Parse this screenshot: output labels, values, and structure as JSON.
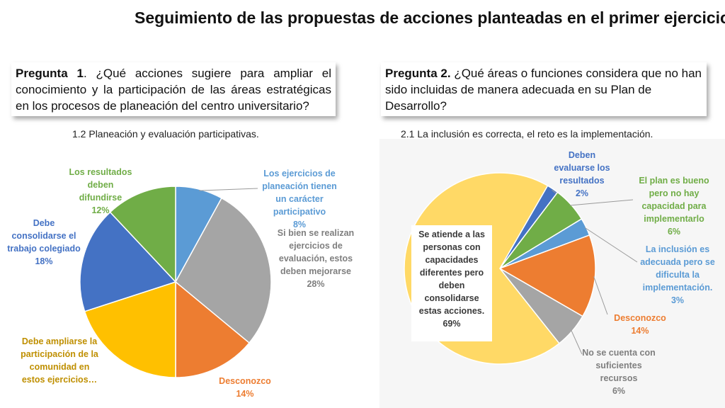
{
  "title": "Seguimiento de las propuestas de acciones planteadas en el primer ejercicio",
  "q1": {
    "bold": "Pregunta 1",
    "text": ". ¿Qué acciones sugiere para ampliar el conocimiento y la participación de las áreas estratégicas en los procesos de planeación del centro universitario?"
  },
  "q2": {
    "bold": "Pregunta 2.",
    "text": " ¿Qué áreas o funciones considera que no han sido incluidas de manera adecuada en su Plan de Desarrollo?"
  },
  "chart_data": [
    {
      "type": "pie",
      "title": "1.2 Planeación y evaluación participativas.",
      "slices": [
        {
          "label": "Los ejercicios de planeación tienen un carácter participativo",
          "pct": "8%",
          "value": 8,
          "color": "#5b9bd5"
        },
        {
          "label": "Si bien se realizan ejercicios de evaluación, estos deben mejorarse",
          "pct": "28%",
          "value": 28,
          "color": "#a5a5a5"
        },
        {
          "label": "Desconozco",
          "pct": "14%",
          "value": 14,
          "color": "#ed7d31"
        },
        {
          "label": "Debe ampliarse la participación de la comunidad en estos ejercicios…",
          "pct": "",
          "value": 20,
          "color": "#ffc000"
        },
        {
          "label": "Debe consolidarse el trabajo colegiado",
          "pct": "18%",
          "value": 18,
          "color": "#4472c4"
        },
        {
          "label": "Los resultados deben difundirse",
          "pct": "12%",
          "value": 12,
          "color": "#70ad47"
        }
      ]
    },
    {
      "type": "pie",
      "title": "2.1 La inclusión es correcta, el reto es la implementación.",
      "slices": [
        {
          "label": "Deben evaluarse los resultados",
          "pct": "2%",
          "value": 2,
          "color": "#4472c4"
        },
        {
          "label": "El plan es bueno pero no hay capacidad para implementarlo",
          "pct": "6%",
          "value": 6,
          "color": "#70ad47"
        },
        {
          "label": "La inclusión es adecuada pero se dificulta la implementación.",
          "pct": "3%",
          "value": 3,
          "color": "#5b9bd5"
        },
        {
          "label": "Desconozco",
          "pct": "14%",
          "value": 14,
          "color": "#ed7d31"
        },
        {
          "label": "No se cuenta con suficientes recursos",
          "pct": "6%",
          "value": 6,
          "color": "#a5a5a5"
        },
        {
          "label": "Se atiende a las personas con capacidades diferentes pero deben consolidarse estas acciones.",
          "pct": "69%",
          "value": 69,
          "color": "#ffd966"
        }
      ]
    }
  ]
}
